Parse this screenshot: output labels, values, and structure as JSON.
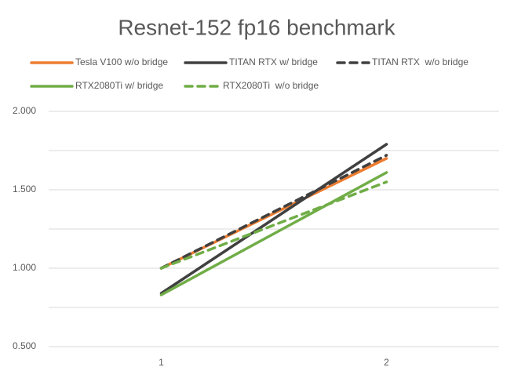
{
  "chart_data": {
    "type": "line",
    "title": "Resnet-152 fp16 benchmark",
    "categories": [
      "1",
      "2"
    ],
    "series": [
      {
        "name": "Tesla V100 w/o bridge",
        "color": "#ed7d31",
        "dash": false,
        "values": [
          1.0,
          1.7
        ]
      },
      {
        "name": "TITAN RTX w/ bridge",
        "color": "#404040",
        "dash": false,
        "values": [
          0.84,
          1.79
        ]
      },
      {
        "name": "TITAN RTX  w/o bridge",
        "color": "#404040",
        "dash": true,
        "values": [
          1.0,
          1.72
        ]
      },
      {
        "name": "RTX2080Ti w/ bridge",
        "color": "#70ad47",
        "dash": false,
        "values": [
          0.83,
          1.61
        ]
      },
      {
        "name": "RTX2080Ti  w/o bridge",
        "color": "#70ad47",
        "dash": true,
        "values": [
          1.0,
          1.55
        ]
      }
    ],
    "ylim": [
      0.5,
      2.0
    ],
    "yticks": [
      {
        "value": 0.5,
        "label": "0.500"
      },
      {
        "value": 1.0,
        "label": "1.000"
      },
      {
        "value": 1.5,
        "label": "1.500"
      },
      {
        "value": 2.0,
        "label": "2.000"
      }
    ],
    "minor_yticks": [
      0.75,
      1.25,
      1.75
    ],
    "grid": true,
    "legend": "top"
  }
}
